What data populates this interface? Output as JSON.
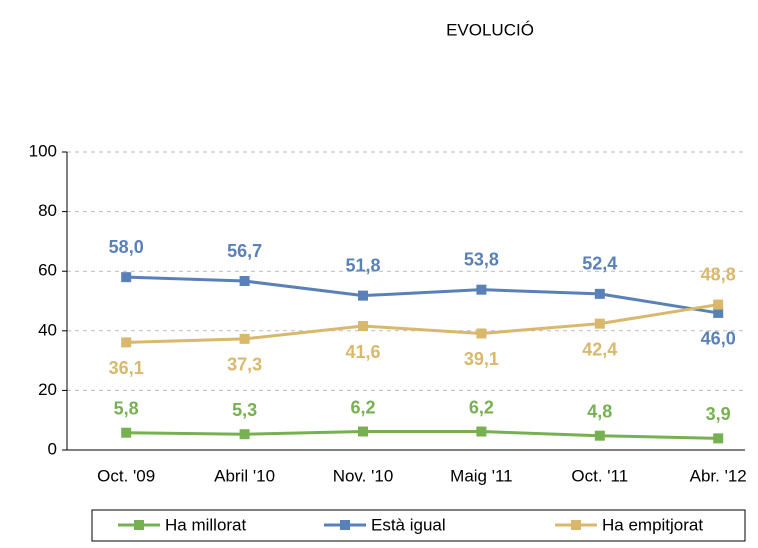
{
  "chart_data": {
    "type": "line",
    "title": "EVOLUCIÓ",
    "categories": [
      "Oct. '09",
      "Abril '10",
      "Nov. '10",
      "Maig '11",
      "Oct. '11",
      "Abr. '12"
    ],
    "series": [
      {
        "name": "Ha millorat",
        "color": "#77b050",
        "values": [
          5.8,
          5.3,
          6.2,
          6.2,
          4.8,
          3.9
        ],
        "value_labels": [
          "5,8",
          "5,3",
          "6,2",
          "6,2",
          "4,8",
          "3,9"
        ]
      },
      {
        "name": "Està igual",
        "color": "#5a80b8",
        "values": [
          58.0,
          56.7,
          51.8,
          53.8,
          52.4,
          46.0
        ],
        "value_labels": [
          "58,0",
          "56,7",
          "51,8",
          "53,8",
          "52,4",
          "46,0"
        ]
      },
      {
        "name": "Ha empitjorat",
        "color": "#d9b86c",
        "values": [
          36.1,
          37.3,
          41.6,
          39.1,
          42.4,
          48.8
        ],
        "value_labels": [
          "36,1",
          "37,3",
          "41,6",
          "39,1",
          "42,4",
          "48,8"
        ]
      }
    ],
    "ylim": [
      0,
      100
    ],
    "yticks": [
      0,
      20,
      40,
      60,
      80,
      100
    ],
    "grid": true,
    "legend": "bottom"
  }
}
